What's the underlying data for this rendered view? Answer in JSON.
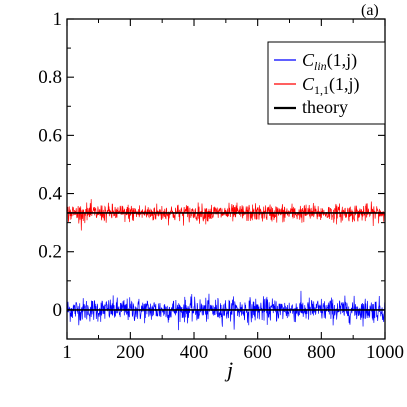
{
  "chart_data": {
    "type": "line",
    "panel_label": "(a)",
    "xlabel": "j",
    "ylabel": "",
    "xlim": [
      1,
      1000
    ],
    "ylim": [
      -0.1,
      1.0
    ],
    "x_ticks": [
      1,
      200,
      400,
      600,
      800,
      1000
    ],
    "x_tick_labels": [
      "1",
      "200",
      "400",
      "600",
      "800",
      "1000"
    ],
    "y_ticks": [
      0,
      0.2,
      0.4,
      0.6,
      0.8,
      1.0
    ],
    "y_tick_labels": [
      "0",
      "0.2",
      "0.4",
      "0.6",
      "0.8",
      "1"
    ],
    "grid": false,
    "legend_position": "top-right",
    "series": [
      {
        "name": "C_lin(1,j)",
        "legend_symbol": "C",
        "legend_subscript": "lin",
        "legend_args": "(1,j)",
        "color": "#0000ff",
        "description": "noisy fluctuation around 0",
        "mean": 0.0,
        "noise_amplitude": 0.02,
        "x_range": [
          1,
          1000
        ]
      },
      {
        "name": "C_1,1(1,j)",
        "legend_symbol": "C",
        "legend_subscript": "1,1",
        "legend_args": "(1,j)",
        "color": "#ff0000",
        "description": "noisy fluctuation around 1/3",
        "mean": 0.3333,
        "noise_amplitude": 0.015,
        "x_range": [
          1,
          1000
        ]
      },
      {
        "name": "theory",
        "color": "#000000",
        "lines": [
          0.0,
          0.3333
        ],
        "x_range": [
          1,
          1000
        ]
      }
    ]
  }
}
